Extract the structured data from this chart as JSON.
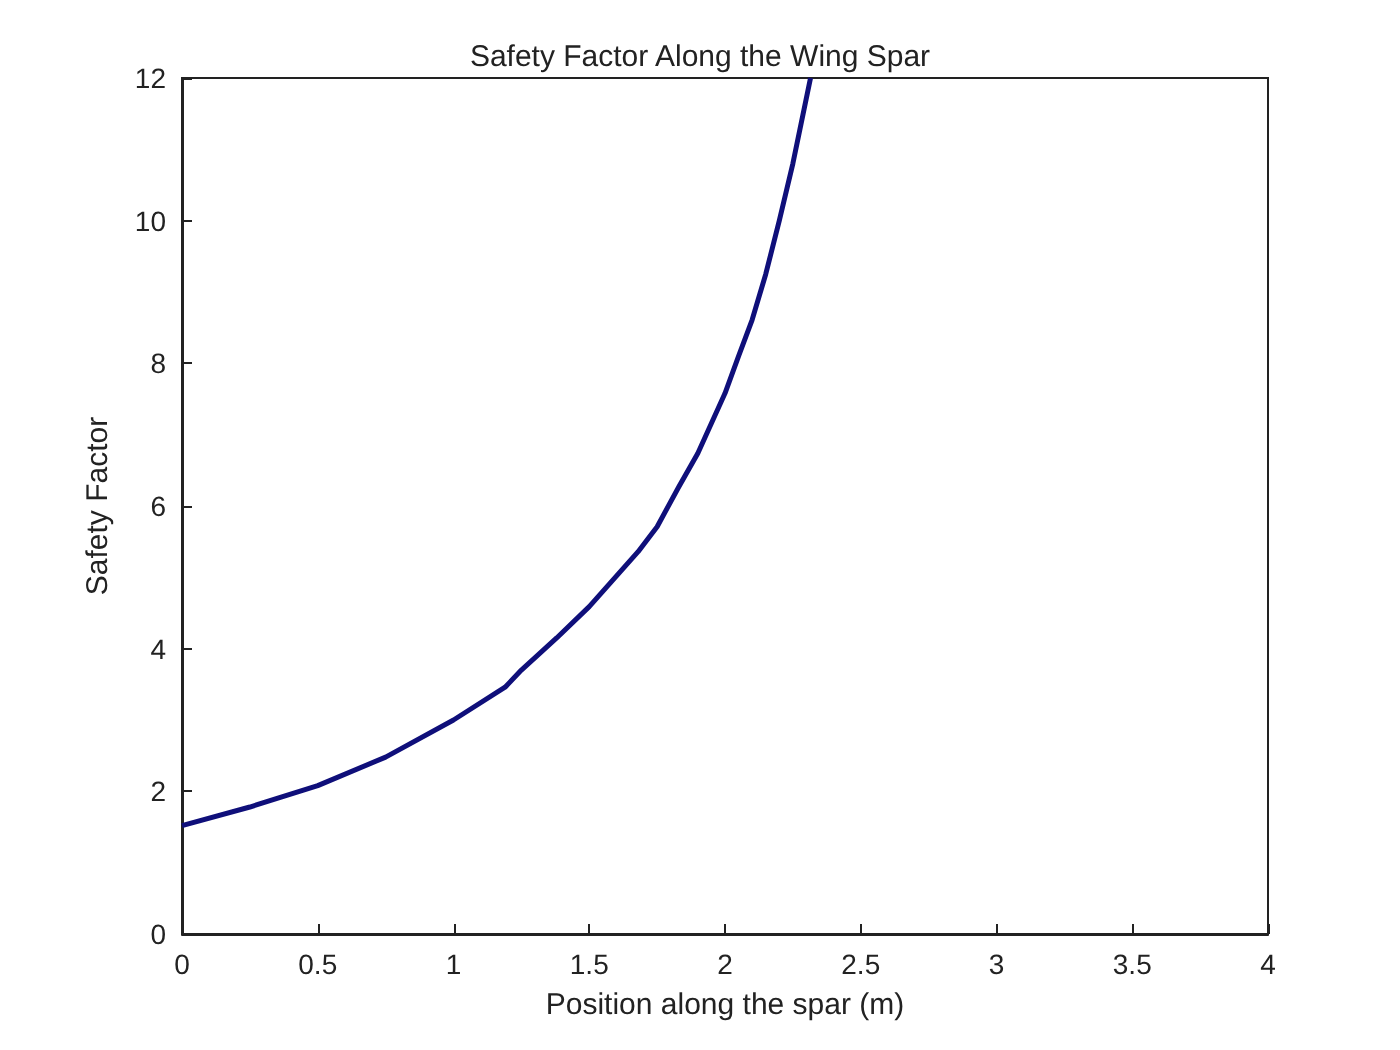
{
  "chart_data": {
    "type": "line",
    "title": "Safety Factor Along the Wing Spar",
    "xlabel": "Position along the spar (m)",
    "ylabel": "Safety Factor",
    "x": [
      0,
      0.25,
      0.5,
      0.75,
      1.0,
      1.19,
      1.25,
      1.38,
      1.5,
      1.68,
      1.75,
      1.83,
      1.9,
      2.0,
      2.05,
      2.1,
      2.15,
      2.2,
      2.25,
      2.315
    ],
    "series": [
      {
        "color": "#0f0f7a",
        "values": [
          1.52,
          1.78,
          2.08,
          2.48,
          3.0,
          3.46,
          3.7,
          4.15,
          4.59,
          5.36,
          5.71,
          6.27,
          6.74,
          7.58,
          8.1,
          8.61,
          9.25,
          10.0,
          10.8,
          12.0
        ]
      }
    ],
    "xlim": [
      0,
      4
    ],
    "xticks": [
      0,
      0.5,
      1,
      1.5,
      2,
      2.5,
      3,
      3.5,
      4
    ],
    "ylim": [
      0,
      12
    ],
    "yticks": [
      0,
      2,
      4,
      6,
      8,
      10,
      12
    ],
    "grid": false,
    "marker": "none",
    "line_style": "solid"
  }
}
